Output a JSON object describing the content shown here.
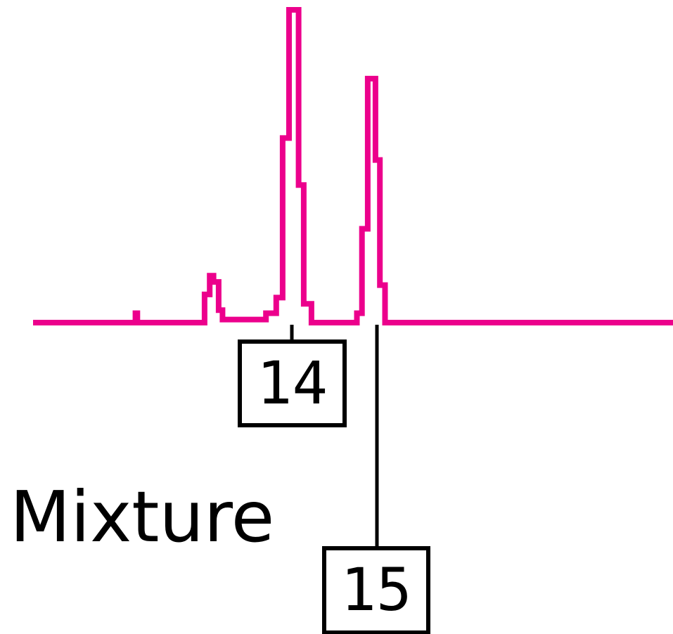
{
  "caption": "Mixture",
  "colors": {
    "trace": "#ec008c",
    "label": "#000000",
    "background": "#ffffff"
  },
  "chart_data": {
    "type": "line",
    "title": "",
    "xlabel": "",
    "ylabel": "",
    "grid": false,
    "xlim": [
      0,
      100
    ],
    "ylim": [
      0,
      100
    ],
    "series": [
      {
        "values": [
          [
            0,
            0
          ],
          [
            16.0,
            0
          ],
          [
            16.0,
            3
          ],
          [
            16.3,
            3
          ],
          [
            16.3,
            0
          ],
          [
            26.8,
            0
          ],
          [
            26.8,
            9
          ],
          [
            27.6,
            9
          ],
          [
            27.6,
            15
          ],
          [
            28.2,
            15
          ],
          [
            28.2,
            13
          ],
          [
            29.0,
            13
          ],
          [
            29.0,
            4
          ],
          [
            29.6,
            4
          ],
          [
            29.6,
            1
          ],
          [
            36.4,
            1
          ],
          [
            36.4,
            3
          ],
          [
            38.0,
            3
          ],
          [
            38.0,
            8
          ],
          [
            39.0,
            8
          ],
          [
            39.0,
            59
          ],
          [
            40.0,
            59
          ],
          [
            40.0,
            100
          ],
          [
            41.5,
            100
          ],
          [
            41.5,
            44
          ],
          [
            42.3,
            44
          ],
          [
            42.3,
            6
          ],
          [
            43.5,
            6
          ],
          [
            43.5,
            0
          ],
          [
            50.6,
            0
          ],
          [
            50.6,
            3
          ],
          [
            51.4,
            3
          ],
          [
            51.4,
            30
          ],
          [
            52.3,
            30
          ],
          [
            52.3,
            78
          ],
          [
            53.5,
            78
          ],
          [
            53.5,
            52
          ],
          [
            54.2,
            52
          ],
          [
            54.2,
            12
          ],
          [
            55.0,
            12
          ],
          [
            55.0,
            0
          ],
          [
            100,
            0
          ]
        ]
      }
    ],
    "annotations": [
      {
        "label": "14",
        "x": 40.8
      },
      {
        "label": "15",
        "x": 53.5
      }
    ]
  }
}
